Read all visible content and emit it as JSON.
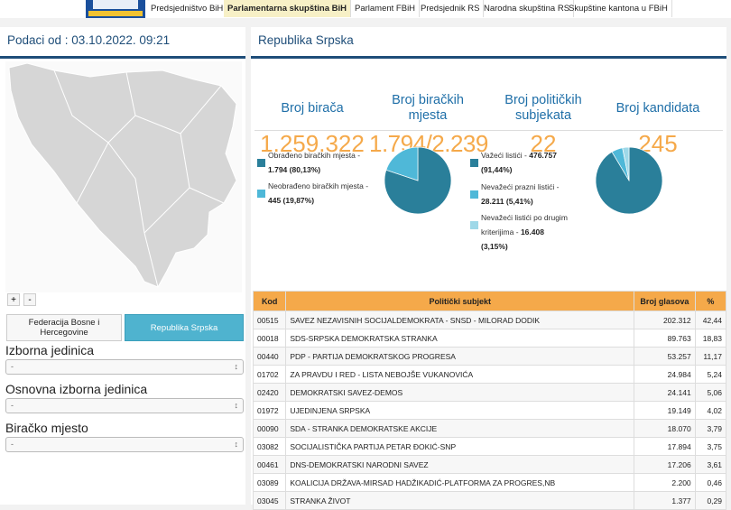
{
  "nav": {
    "tabs": [
      "Predsjedništvo BiH",
      "Parlamentarna skupština BiH",
      "Parlament FBiH",
      "Predsjednik RS",
      "Narodna skupština RS",
      "Skupštine kantona u FBiH"
    ]
  },
  "left": {
    "header": "Podaci od : 03.10.2022. 09:21",
    "zoom": [
      "+",
      "-"
    ],
    "buttons": [
      "Federacija Bosne i Hercegovine",
      "Republika Srpska"
    ],
    "fields": [
      {
        "label": "Izborna jedinica",
        "value": "-"
      },
      {
        "label": "Osnovna izborna jedinica",
        "value": "-"
      },
      {
        "label": "Biračko mjesto",
        "value": "-"
      }
    ]
  },
  "right": {
    "header": "Republika Srpska",
    "stats": [
      {
        "label": "Broj birača",
        "value": "1.259.322"
      },
      {
        "label": "Broj biračkih mjesta",
        "value": "1.794/2.239"
      },
      {
        "label": "Broj političkih subjekata",
        "value": "22"
      },
      {
        "label": "Broj kandidata",
        "value": "245"
      }
    ],
    "pies": [
      {
        "slices": [
          {
            "label": "Obrađeno biračkih mjesta -",
            "value_label": "1.794 (80,13%)",
            "value": 80.13,
            "color": "#2a7f9a"
          },
          {
            "label": "Neobrađeno biračkih mjesta -",
            "value_label": "445 (19,87%)",
            "value": 19.87,
            "color": "#4fb8d8"
          }
        ]
      },
      {
        "slices": [
          {
            "label": "Važeći listići -",
            "value_label": "476.757 (91,44%)",
            "value": 91.44,
            "color": "#2a7f9a"
          },
          {
            "label": "Nevažeći prazni listići -",
            "value_label": "28.211 (5,41%)",
            "value": 5.41,
            "color": "#4fb8d8"
          },
          {
            "label": "Nevažeći listići po drugim kriterijima -",
            "value_label": "16.408 (3,15%)",
            "value": 3.15,
            "color": "#9ed8e8"
          }
        ]
      }
    ]
  },
  "table": {
    "headers": [
      "Kod",
      "Politički subjekt",
      "Broj glasova",
      "%"
    ],
    "rows": [
      [
        "00515",
        "SAVEZ NEZAVISNIH SOCIJALDEMOKRATA - SNSD - MILORAD DODIK",
        "202.312",
        "42,44"
      ],
      [
        "00018",
        "SDS-SRPSKA DEMOKRATSKA STRANKA",
        "89.763",
        "18,83"
      ],
      [
        "00440",
        "PDP - PARTIJA DEMOKRATSKOG PROGRESA",
        "53.257",
        "11,17"
      ],
      [
        "01702",
        "ZA PRAVDU I RED - LISTA NEBOJŠE VUKANOVIĆA",
        "24.984",
        "5,24"
      ],
      [
        "02420",
        "DEMOKRATSKI SAVEZ-DEMOS",
        "24.141",
        "5,06"
      ],
      [
        "01972",
        "UJEDINJENA SRPSKA",
        "19.149",
        "4,02"
      ],
      [
        "00090",
        "SDA - STRANKA DEMOKRATSKE AKCIJE",
        "18.070",
        "3,79"
      ],
      [
        "03082",
        "SOCIJALISTIČKA PARTIJA PETAR ĐOKIĆ-SNP",
        "17.894",
        "3,75"
      ],
      [
        "00461",
        "DNS-DEMOKRATSKI NARODNI SAVEZ",
        "17.206",
        "3,61"
      ],
      [
        "03089",
        "KOALICIJA DRŽAVA-MIRSAD HADŽIKADIĆ-PLATFORMA ZA PROGRES,NB",
        "2.200",
        "0,46"
      ],
      [
        "03045",
        "STRANKA ŽIVOT",
        "1.377",
        "0,29"
      ]
    ]
  }
}
